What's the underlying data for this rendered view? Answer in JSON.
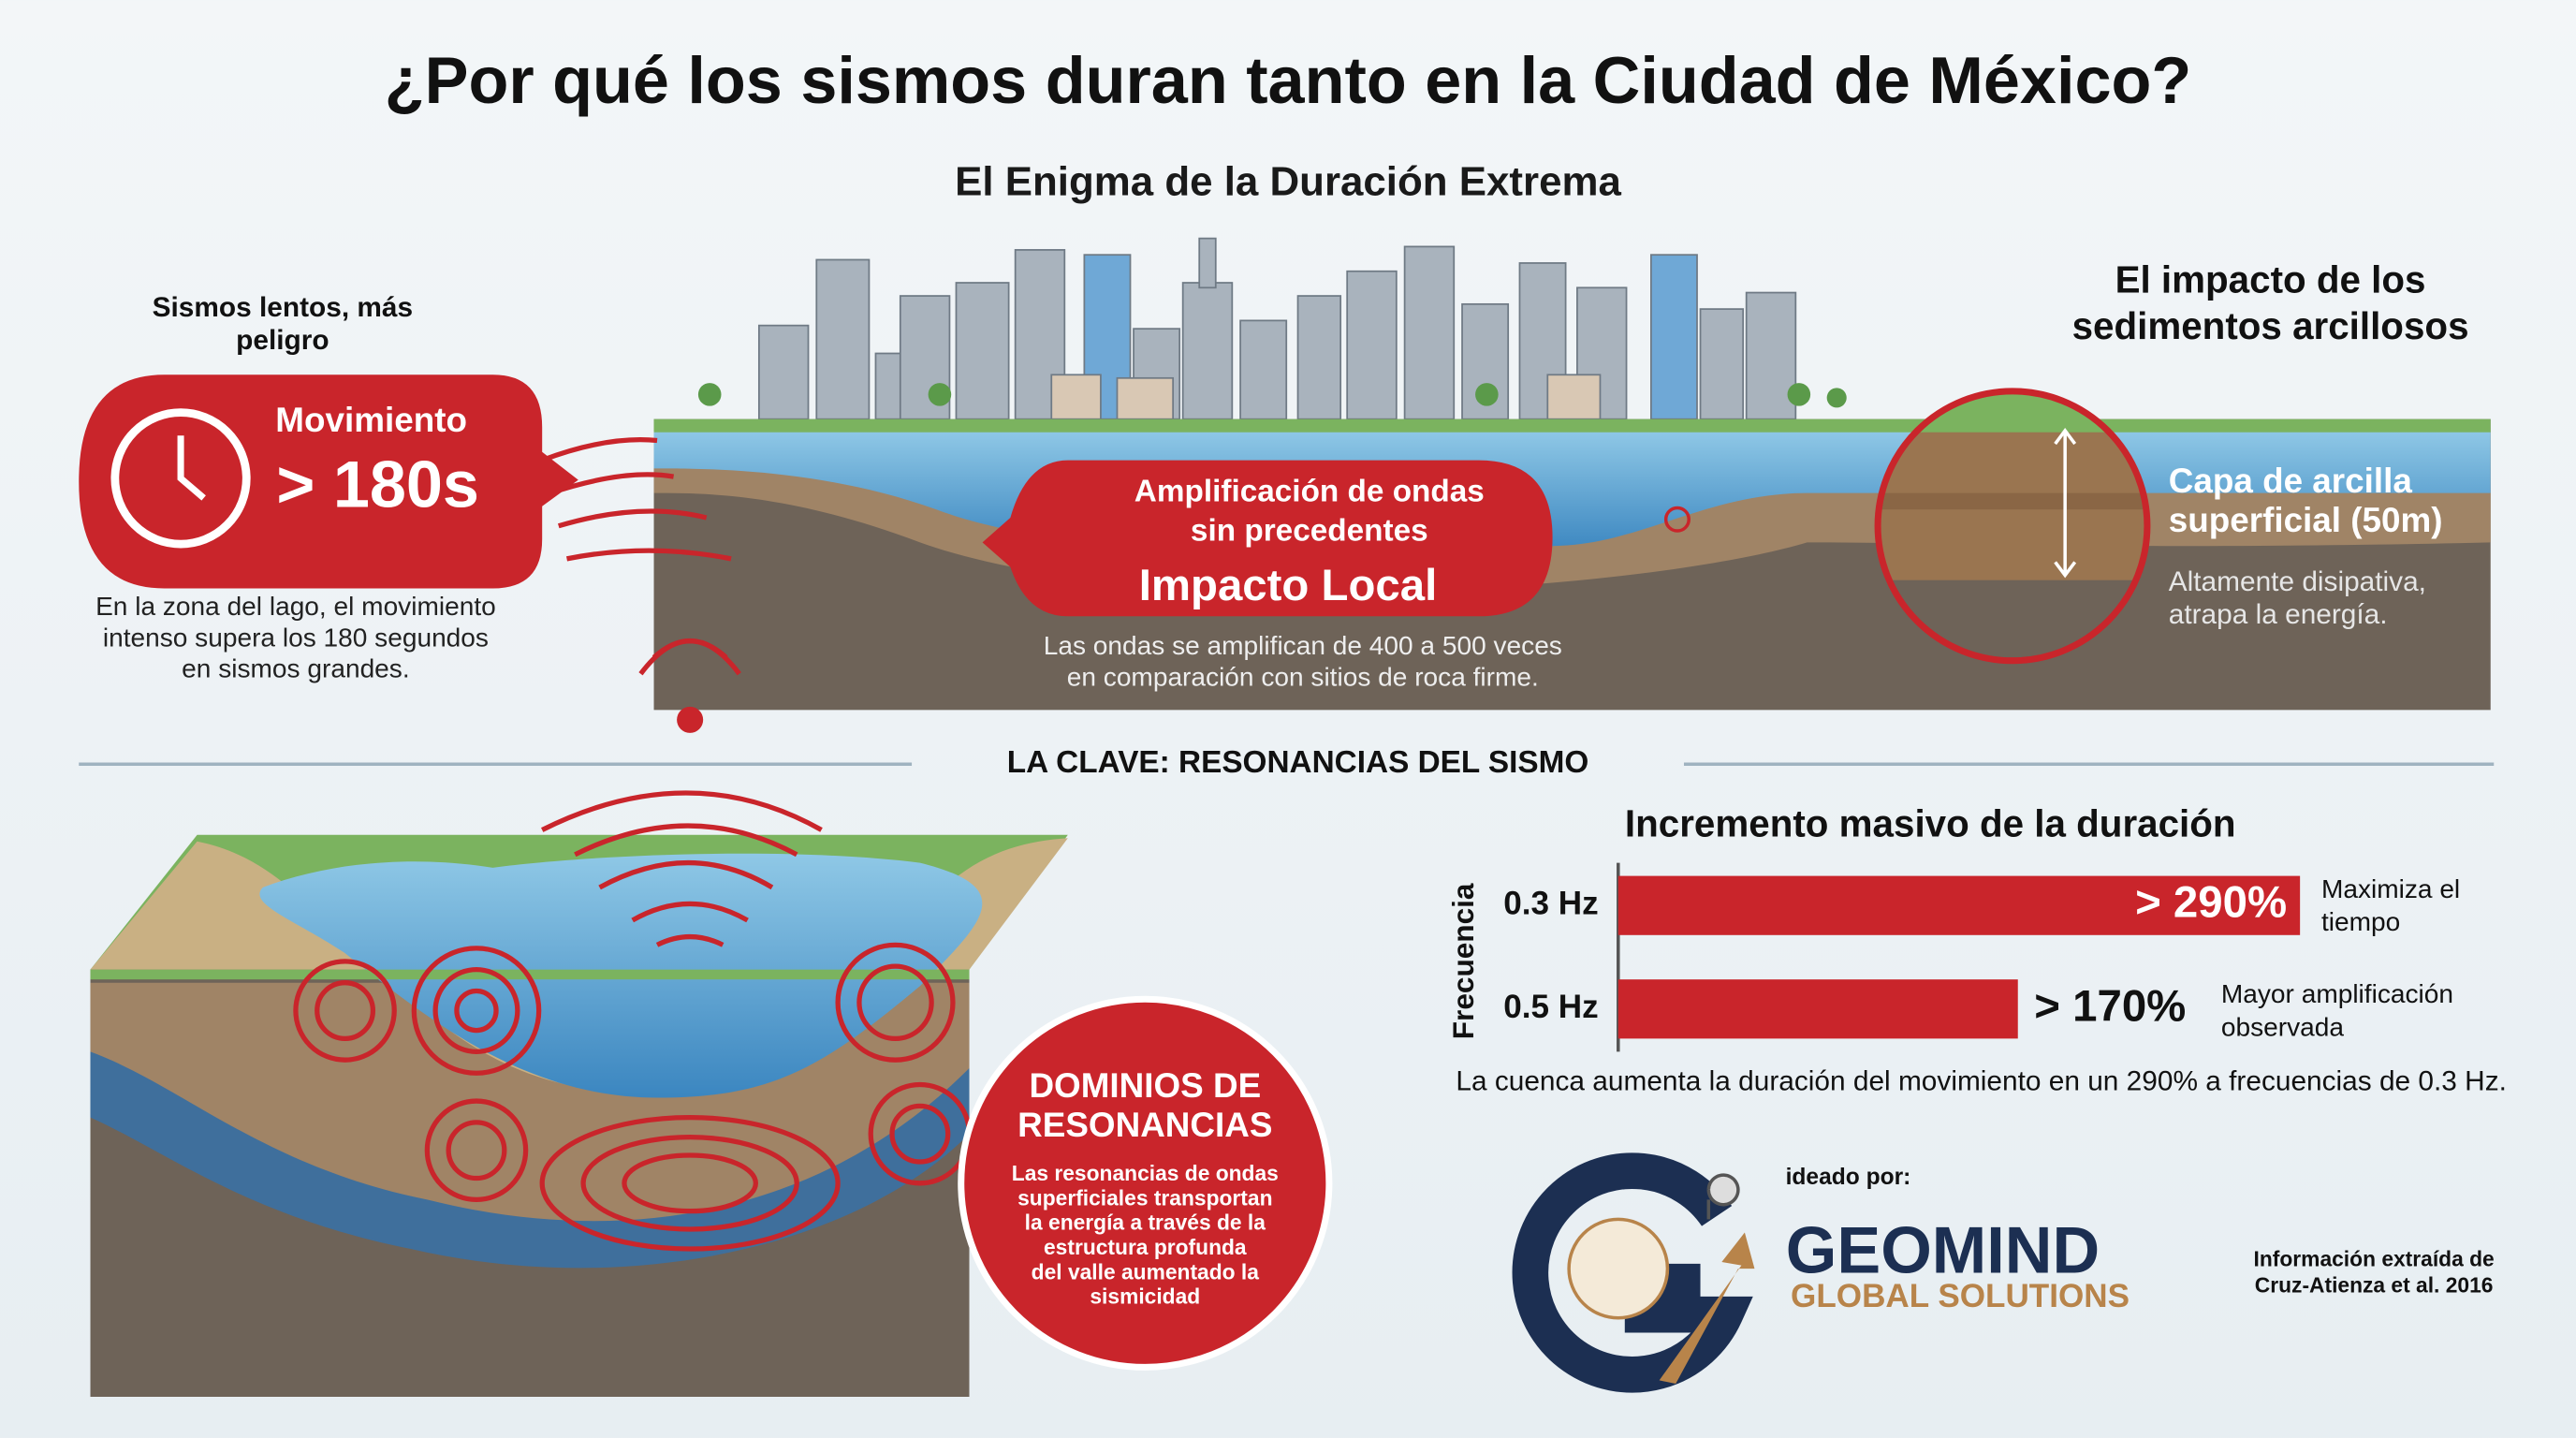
{
  "header": {
    "title": "¿Por qué los sismos duran tanto en la Ciudad de México?",
    "subtitle": "El Enigma de la Duración Extrema"
  },
  "left_panel": {
    "heading": [
      "Sismos lentos, más",
      "peligro"
    ],
    "badge_label": "Movimiento",
    "badge_value": "> 180s",
    "text": [
      "En la zona del lago, el movimiento",
      "intenso supera los 180 segundos",
      "en sismos grandes."
    ]
  },
  "center_panel": {
    "callout": [
      "Amplificación de ondas",
      "sin precedentes"
    ],
    "callout_title": "Impacto Local",
    "caption": [
      "Las ondas se amplifican de 400 a 500 veces",
      "en comparación con sitios de roca firme."
    ]
  },
  "right_panel": {
    "heading": [
      "El impacto de los",
      "sedimentos arcillosos"
    ],
    "layer": [
      "Capa de arcilla",
      "superficial (50m)"
    ],
    "text": [
      "Altamente disipativa,",
      "atrapa la energía."
    ]
  },
  "divider": "LA CLAVE: RESONANCIAS DEL SISMO",
  "resonance": {
    "title": [
      "DOMINIOS DE",
      "RESONANCIAS"
    ],
    "text": [
      "Las resonancias de ondas",
      "superficiales transportan",
      "la energía a través de la",
      "estructura profunda",
      "del valle aumentado la",
      "sismicidad"
    ]
  },
  "chart_data": {
    "type": "bar",
    "orientation": "horizontal",
    "title": "Incremento masivo de la duración",
    "y_label": "Frecuencia",
    "categories": [
      "0.3 Hz",
      "0.5 Hz"
    ],
    "values": [
      290,
      170
    ],
    "value_labels": [
      "> 290%",
      "> 170%"
    ],
    "color": "#c9252b",
    "annotations": [
      [
        "Maximiza el",
        "tiempo"
      ],
      [
        "Mayor amplificación",
        "observada"
      ]
    ],
    "caption": "La cuenca aumenta la duración del movimiento en un 290% a frecuencias de 0.3 Hz."
  },
  "credits": {
    "by": "ideado por:",
    "brand": "GEOMIND",
    "brand_sub": "GLOBAL SOLUTIONS",
    "source": [
      "Información extraída de",
      "Cruz-Atienza et al. 2016"
    ]
  }
}
